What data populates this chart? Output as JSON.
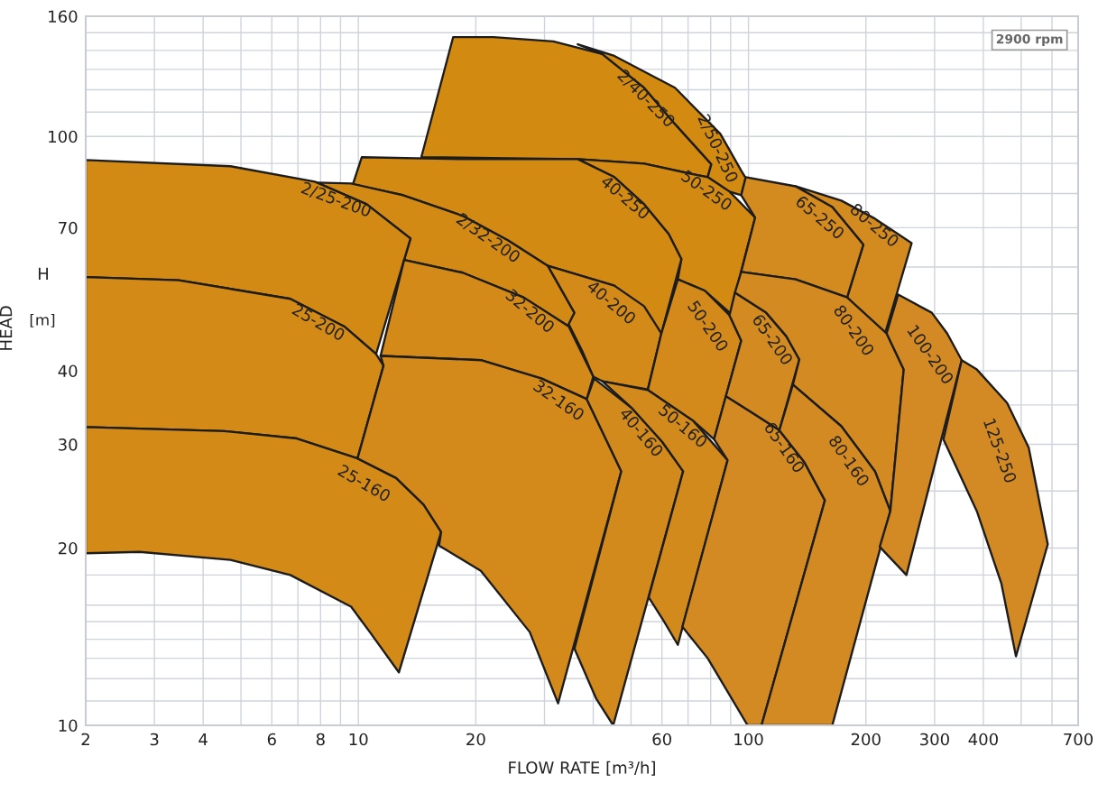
{
  "chart_data": {
    "type": "area",
    "xlabel": "FLOW RATE [m³/h]",
    "ylabel": "HEAD",
    "log": "xy",
    "grid": true,
    "xlim": [
      2,
      700
    ],
    "ylim": [
      10,
      160
    ],
    "xticks": [
      2,
      3,
      4,
      6,
      8,
      10,
      20,
      60,
      100,
      200,
      300,
      400,
      700
    ],
    "yticks": [
      10,
      20,
      30,
      40,
      70,
      100,
      160
    ],
    "series": [
      {
        "name": "2/40-250",
        "color": "#d38a10",
        "x": [
          17.5,
          22.2,
          31.6,
          42.2,
          54.0,
          64.8,
          74.5,
          80.3,
          78.6,
          70.6,
          54.0,
          36.5,
          14.5
        ],
        "values": [
          147.5,
          147.5,
          145,
          138,
          121,
          105,
          94.8,
          89.7,
          85.3,
          86.5,
          89.9,
          91.5,
          92.2
        ]
      },
      {
        "name": "2/50-250",
        "color": "#d38a11",
        "x": [
          36.5,
          45.3,
          64.8,
          84.7,
          95.8,
          98.4,
          95.8,
          89.4,
          78.6,
          80.3,
          74.5,
          64.8,
          54.0,
          42.2
        ],
        "values": [
          143.4,
          137,
          121,
          101,
          87.5,
          85.0,
          79.5,
          80.6,
          85.3,
          89.7,
          94.8,
          105,
          121,
          138
        ]
      },
      {
        "name": "50-250",
        "color": "#d38a12",
        "x": [
          36.5,
          54.0,
          70.6,
          78.6,
          89.4,
          104,
          89.8,
          77.3,
          65.9,
          67.3,
          62.4,
          54.0,
          45.3
        ],
        "values": [
          91.5,
          89.9,
          86.5,
          85.3,
          80.6,
          72.8,
          50.1,
          54.7,
          57.2,
          61.9,
          68.3,
          76.7,
          85.3
        ]
      },
      {
        "name": "40-250",
        "color": "#d38a13",
        "x": [
          10.2,
          18.5,
          36.5,
          45.3,
          54.0,
          62.4,
          67.3,
          59.8,
          45.3,
          30.6,
          24.2,
          18.5,
          13.0,
          9.68
        ],
        "values": [
          92.2,
          91.5,
          91.5,
          85.3,
          76.7,
          68.3,
          61.9,
          46.3,
          55.8,
          60.3,
          66.6,
          73.3,
          79.5,
          82.9
        ]
      },
      {
        "name": "2/32-200",
        "color": "#d38a14",
        "x": [
          7.82,
          9.58,
          13.0,
          18.5,
          24.2,
          30.6,
          35.8,
          34.6,
          26.5,
          18.5,
          13.1,
          13.6,
          10.5
        ],
        "values": [
          83.5,
          83.2,
          79.5,
          73.3,
          66.6,
          60.3,
          50.2,
          47.6,
          53.3,
          58.7,
          61.7,
          67.1,
          76.7
        ]
      },
      {
        "name": "2/25-200",
        "color": "#d38a15",
        "x": [
          2.0,
          4.7,
          7.73,
          10.5,
          13.6,
          11.1,
          9.23,
          6.69,
          3.46,
          2.0
        ],
        "values": [
          91.2,
          89.0,
          83.8,
          76.7,
          67.1,
          42.7,
          47.5,
          53.0,
          57.0,
          57.7
        ]
      },
      {
        "name": "25-200",
        "color": "#d38a16",
        "x": [
          2.0,
          3.46,
          6.69,
          9.23,
          11.1,
          11.6,
          9.95,
          6.95,
          4.53,
          2.0
        ],
        "values": [
          57.7,
          57.0,
          53.0,
          47.5,
          42.7,
          40.8,
          28.4,
          30.7,
          31.6,
          32.1
        ]
      },
      {
        "name": "25-160",
        "color": "#d38a17",
        "x": [
          2.0,
          4.53,
          6.95,
          9.95,
          12.5,
          14.7,
          16.3,
          12.7,
          10.7,
          9.58,
          6.69,
          4.7,
          2.75,
          2.0
        ],
        "values": [
          32.1,
          31.6,
          30.7,
          28.4,
          26.3,
          23.7,
          21.3,
          12.3,
          14.4,
          15.9,
          18.0,
          19.1,
          19.7,
          19.6
        ]
      },
      {
        "name": "40-200",
        "color": "#d38a18",
        "x": [
          30.6,
          45.3,
          54.0,
          59.8,
          55.2,
          42.2,
          40.0,
          37.5,
          34.6,
          35.8
        ],
        "values": [
          60.3,
          55.8,
          51.5,
          46.3,
          37.2,
          38.4,
          39.1,
          43.2,
          48.0,
          50.2
        ]
      },
      {
        "name": "32-200",
        "color": "#d38a19",
        "x": [
          13.1,
          18.5,
          26.5,
          34.6,
          40.0,
          38.5,
          29.5,
          20.6,
          11.4
        ],
        "values": [
          61.7,
          58.7,
          53.3,
          47.6,
          39.1,
          35.8,
          38.8,
          41.7,
          42.4
        ]
      },
      {
        "name": "32-160",
        "color": "#d38a1a",
        "x": [
          11.4,
          20.6,
          29.5,
          38.5,
          47.2,
          32.5,
          27.5,
          20.6,
          16.1,
          16.3,
          14.7,
          12.5,
          9.95,
          11.6
        ],
        "values": [
          42.4,
          41.7,
          38.8,
          35.8,
          27.0,
          10.9,
          14.4,
          18.3,
          20.2,
          21.3,
          23.7,
          26.3,
          28.4,
          40.8
        ]
      },
      {
        "name": "50-200",
        "color": "#d38a1b",
        "x": [
          65.9,
          77.3,
          89.4,
          95.8,
          81.6,
          72.1,
          55.2,
          59.8
        ],
        "values": [
          57.2,
          54.7,
          49.7,
          45.0,
          30.6,
          32.9,
          37.1,
          46.3
        ]
      },
      {
        "name": "40-160",
        "color": "#d38a1c",
        "x": [
          40.2,
          50.4,
          60.1,
          68.0,
          45.0,
          40.7,
          35.8,
          47.2,
          38.5
        ],
        "values": [
          38.8,
          34.5,
          30.3,
          27.0,
          10.0,
          11.1,
          13.5,
          27.0,
          35.8
        ]
      },
      {
        "name": "50-160",
        "color": "#d38a1d",
        "x": [
          42.2,
          55.2,
          72.1,
          88.4,
          65.9,
          60.8,
          55.5,
          68.0,
          60.1,
          50.4
        ],
        "values": [
          38.4,
          37.1,
          32.9,
          28.2,
          13.7,
          15.0,
          16.5,
          27.0,
          30.3,
          34.5
        ]
      },
      {
        "name": "80-250",
        "color": "#d38a1e",
        "x": [
          132,
          173,
          211,
          262,
          224,
          197,
          179,
          197,
          164
        ],
        "values": [
          82.3,
          77.8,
          72.5,
          65.9,
          46.3,
          49.7,
          53.3,
          65.5,
          75.9
        ]
      },
      {
        "name": "65-250",
        "color": "#d38a1f",
        "x": [
          98.4,
          132,
          164,
          197,
          179,
          132,
          95.8,
          104,
          95.8
        ],
        "values": [
          85.3,
          82.3,
          75.9,
          65.5,
          53.3,
          57.2,
          58.9,
          72.8,
          79.5
        ]
      },
      {
        "name": "65-200",
        "color": "#d38a20",
        "x": [
          92.3,
          111,
          125,
          135,
          120,
          101,
          87.5,
          95.8,
          89.4
        ],
        "values": [
          54.3,
          50.2,
          45.8,
          41.8,
          31.7,
          34.1,
          36.2,
          45.0,
          49.7
        ]
      },
      {
        "name": "80-200",
        "color": "#d38a21",
        "x": [
          95.8,
          132,
          179,
          226,
          250,
          231,
          211,
          173,
          130,
          135,
          125,
          111,
          92.3
        ],
        "values": [
          58.9,
          57.2,
          53.3,
          46.3,
          40.2,
          23.1,
          27.0,
          32.2,
          37.9,
          41.8,
          45.8,
          50.2,
          54.3
        ]
      },
      {
        "name": "65-160",
        "color": "#d38a22",
        "x": [
          87.5,
          101,
          120,
          139,
          157,
          108,
          99.5,
          78.6,
          67.7,
          88.4,
          81.6
        ],
        "values": [
          36.2,
          34.1,
          31.7,
          28.0,
          24.1,
          10.0,
          10.0,
          13.0,
          14.7,
          28.2,
          30.6
        ]
      },
      {
        "name": "80-160",
        "color": "#d38a23",
        "x": [
          130,
          173,
          211,
          231,
          164,
          108,
          157,
          139,
          120
        ],
        "values": [
          37.9,
          32.2,
          27.0,
          23.1,
          10.0,
          10.0,
          24.1,
          28.0,
          31.7
        ]
      },
      {
        "name": "100-200",
        "color": "#d38a24",
        "x": [
          242,
          295,
          323,
          352,
          254,
          217,
          231,
          250,
          226
        ],
        "values": [
          53.9,
          50.2,
          46.3,
          41.7,
          18.0,
          20.1,
          23.1,
          40.2,
          46.3
        ]
      },
      {
        "name": "125-250",
        "color": "#d38a25",
        "x": [
          352,
          385,
          460,
          523,
          585,
          485,
          445,
          385,
          316
        ],
        "values": [
          41.7,
          40.2,
          35.3,
          29.6,
          20.3,
          13.1,
          17.4,
          23.1,
          30.6
        ]
      }
    ],
    "annotations": [
      "2900 rpm",
      "H",
      "[m]"
    ]
  }
}
